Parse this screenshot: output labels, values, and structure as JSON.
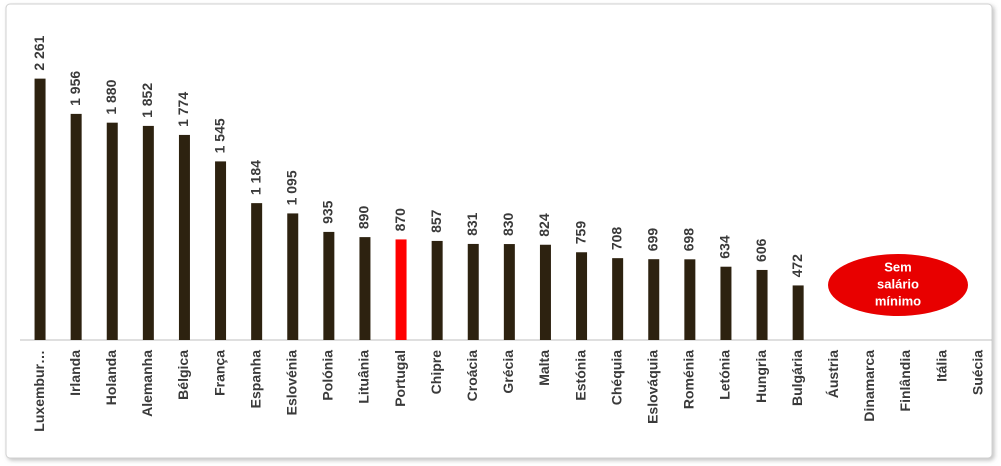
{
  "chart_data": {
    "type": "bar",
    "categories": [
      "Luxembur…",
      "Irlanda",
      "Holanda",
      "Alemanha",
      "Bélgica",
      "França",
      "Espanha",
      "Eslovénia",
      "Polónia",
      "Lituânia",
      "Portugal",
      "Chipre",
      "Croácia",
      "Grécia",
      "Malta",
      "Estónia",
      "Chéquia",
      "Eslováquia",
      "Roménia",
      "Letónia",
      "Hungria",
      "Bulgária",
      "Áustria",
      "Dinamarca",
      "Finlândia",
      "Itália",
      "Suécia"
    ],
    "values": [
      2261,
      1956,
      1880,
      1852,
      1774,
      1545,
      1184,
      1095,
      935,
      890,
      870,
      857,
      831,
      830,
      824,
      759,
      708,
      699,
      698,
      634,
      606,
      472,
      null,
      null,
      null,
      null,
      null
    ],
    "value_labels": [
      "2 261",
      "1 956",
      "1 880",
      "1 852",
      "1 774",
      "1 545",
      "1 184",
      "1 095",
      "935",
      "890",
      "870",
      "857",
      "831",
      "830",
      "824",
      "759",
      "708",
      "699",
      "698",
      "634",
      "606",
      "472",
      null,
      null,
      null,
      null,
      null
    ],
    "colors": [
      "#2d2210",
      "#2d2210",
      "#2d2210",
      "#2d2210",
      "#2d2210",
      "#2d2210",
      "#2d2210",
      "#2d2210",
      "#2d2210",
      "#2d2210",
      "#ff0000",
      "#2d2210",
      "#2d2210",
      "#2d2210",
      "#2d2210",
      "#2d2210",
      "#2d2210",
      "#2d2210",
      "#2d2210",
      "#2d2210",
      "#2d2210",
      "#2d2210",
      null,
      null,
      null,
      null,
      null
    ],
    "ylim": [
      0,
      2500
    ],
    "annotation_lines": [
      "Sem",
      "salário",
      "mínimo"
    ],
    "annotation_color": "#e80000"
  }
}
